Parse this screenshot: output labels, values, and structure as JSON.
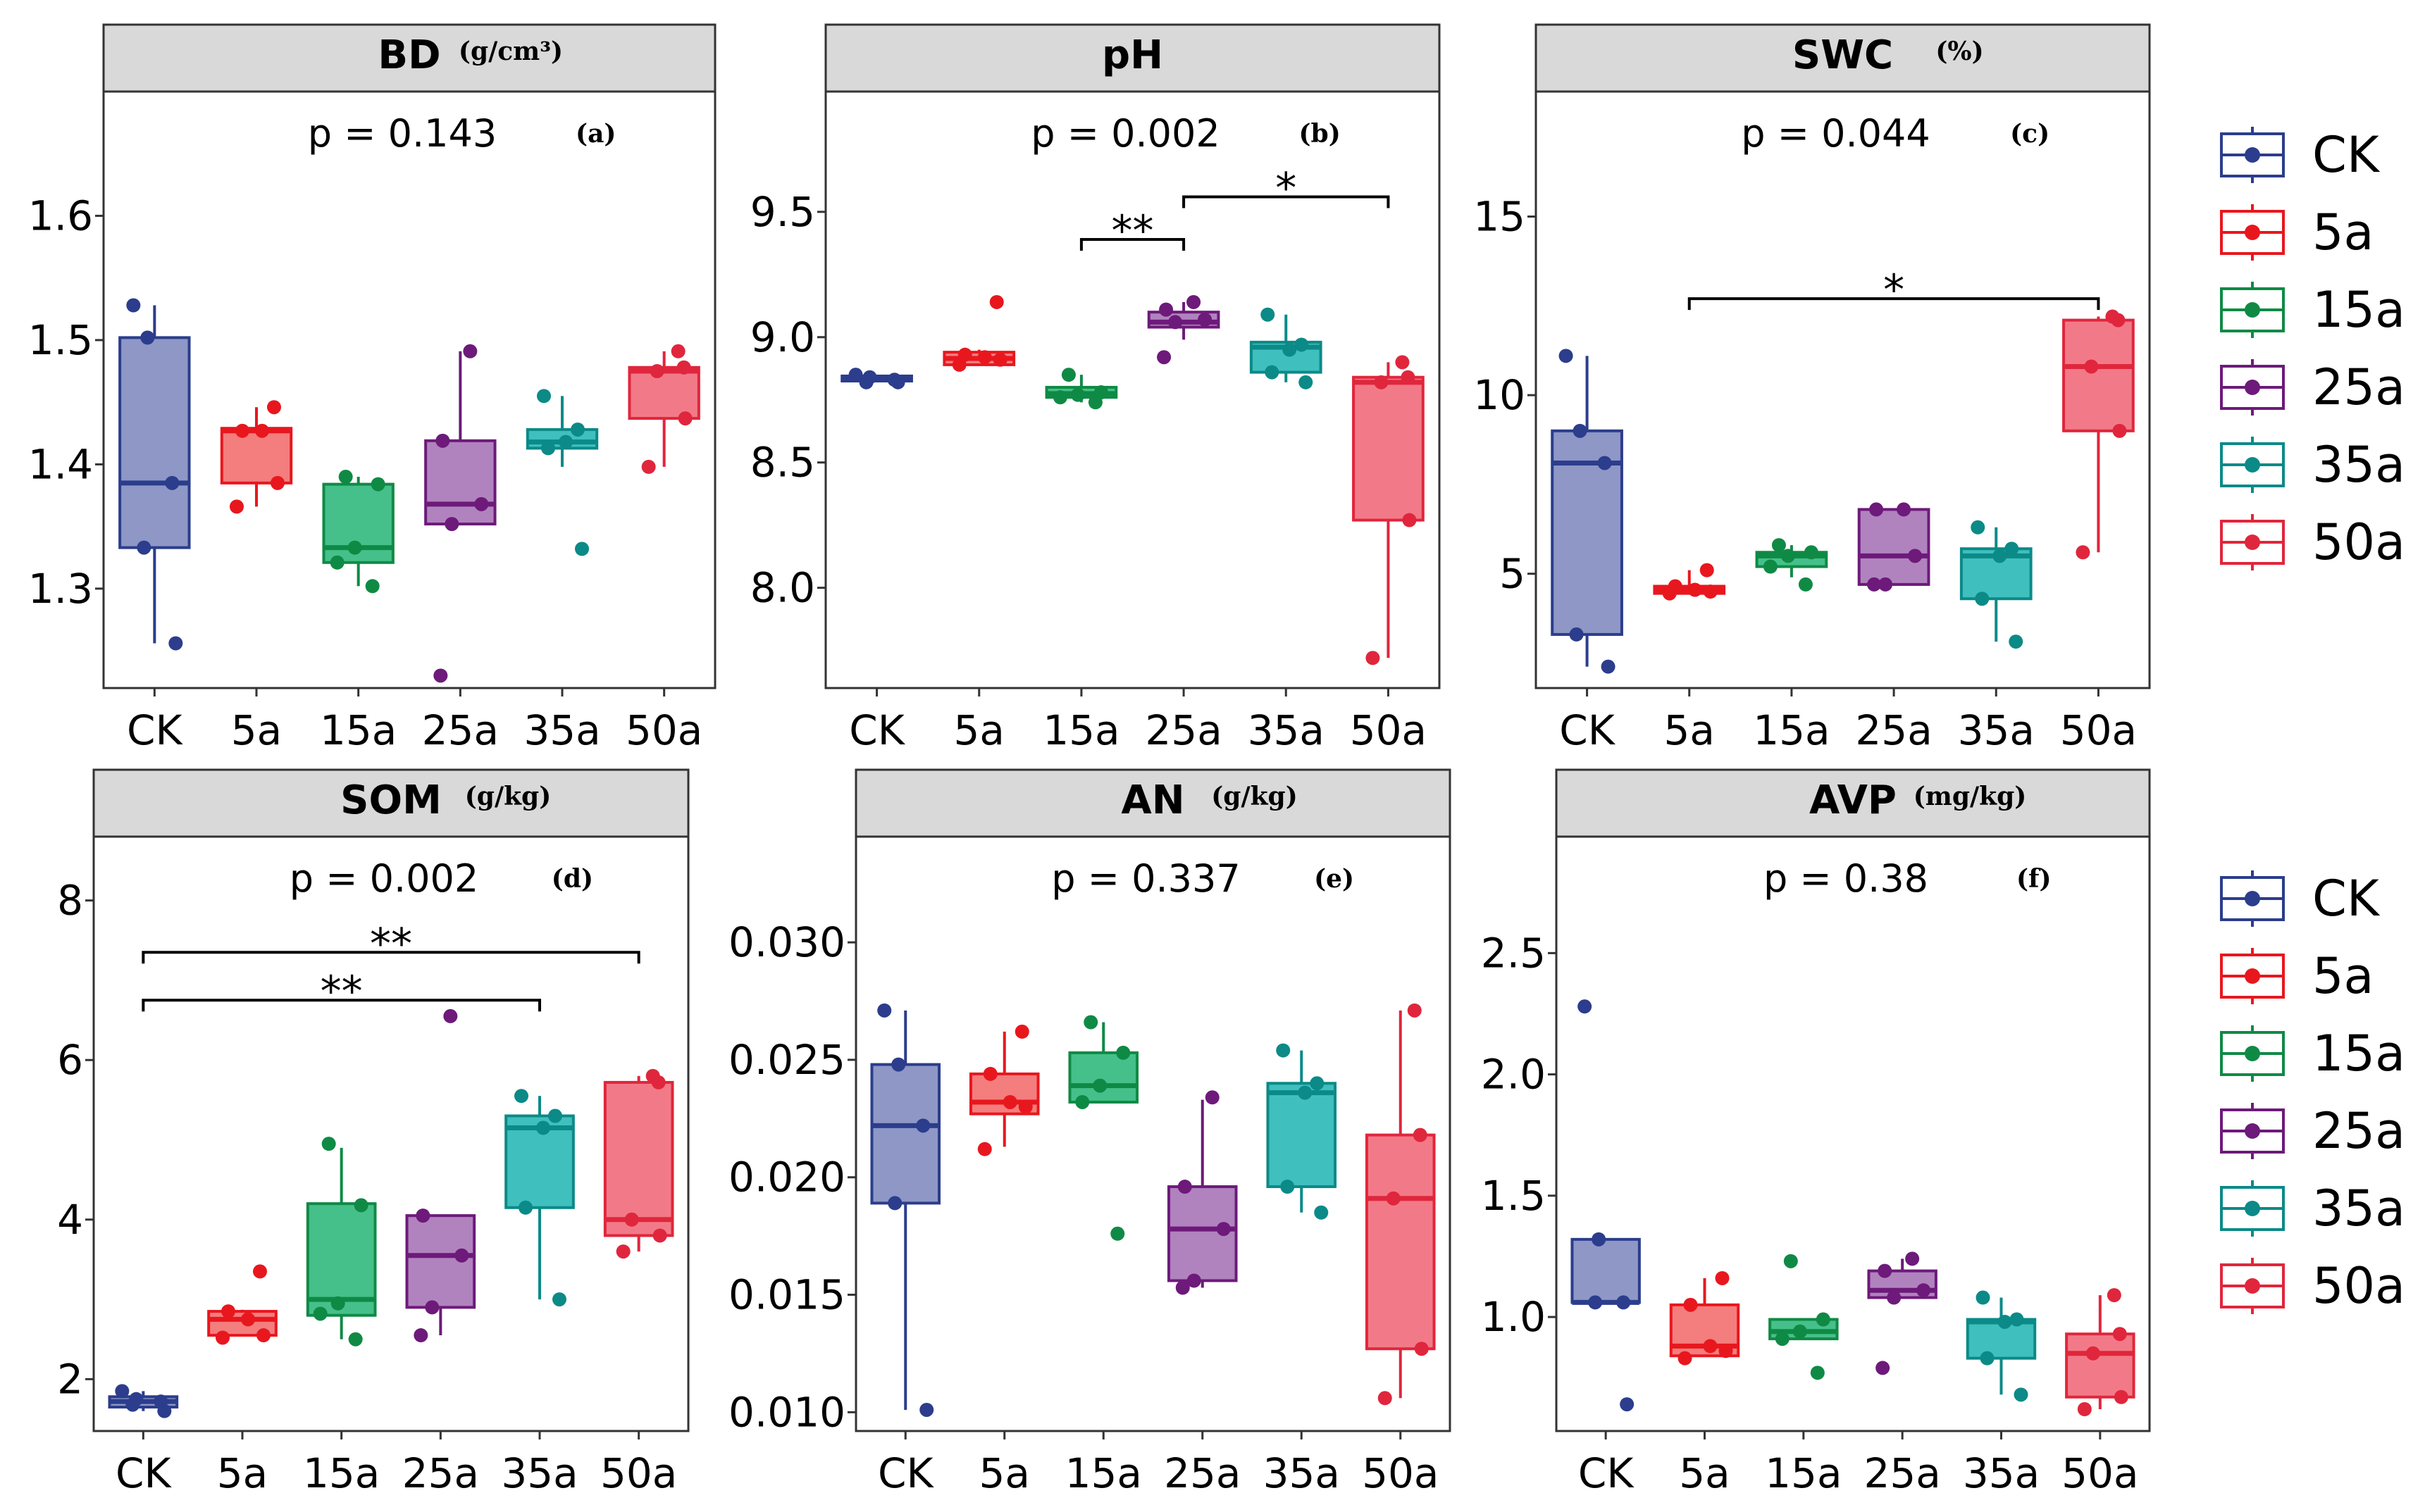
{
  "series_colors": {
    "CK": {
      "line": "#2b3d8c",
      "fill": "#8e97c6"
    },
    "5a": {
      "line": "#e8171e",
      "fill": "#f47d7d"
    },
    "15a": {
      "line": "#0f8a45",
      "fill": "#46c08a"
    },
    "25a": {
      "line": "#6d1a7a",
      "fill": "#b083be"
    },
    "35a": {
      "line": "#0b8a88",
      "fill": "#3fbfbd"
    },
    "50a": {
      "line": "#e0263c",
      "fill": "#f27a88"
    }
  },
  "legends": [
    {
      "entries": [
        "CK",
        "5a",
        "15a",
        "25a",
        "35a",
        "50a"
      ]
    },
    {
      "entries": [
        "CK",
        "5a",
        "15a",
        "25a",
        "35a",
        "50a"
      ]
    }
  ],
  "chart_data": [
    {
      "type": "boxplot",
      "title": "BD",
      "unit": "(g/cm³)",
      "p_value": "p = 0.143",
      "tag": "(a)",
      "categories": [
        "CK",
        "5a",
        "15a",
        "25a",
        "35a",
        "50a"
      ],
      "ylim": [
        1.22,
        1.7
      ],
      "yticks": [
        1.3,
        1.4,
        1.5,
        1.6
      ],
      "tick_labels": [
        "1.3",
        "1.4",
        "1.5",
        "1.6"
      ],
      "boxes": [
        {
          "q1": 1.333,
          "median": 1.385,
          "q3": 1.502,
          "lo": 1.256,
          "hi": 1.528
        },
        {
          "q1": 1.385,
          "median": 1.427,
          "q3": 1.429,
          "lo": 1.366,
          "hi": 1.446
        },
        {
          "q1": 1.321,
          "median": 1.333,
          "q3": 1.384,
          "lo": 1.302,
          "hi": 1.39
        },
        {
          "q1": 1.352,
          "median": 1.368,
          "q3": 1.419,
          "lo": 1.352,
          "hi": 1.491
        },
        {
          "q1": 1.413,
          "median": 1.418,
          "q3": 1.428,
          "lo": 1.398,
          "hi": 1.455
        },
        {
          "q1": 1.437,
          "median": 1.475,
          "q3": 1.478,
          "lo": 1.398,
          "hi": 1.491
        }
      ],
      "points": [
        [
          1.528,
          1.502,
          1.385,
          1.333,
          1.256
        ],
        [
          1.446,
          1.427,
          1.427,
          1.385,
          1.366
        ],
        [
          1.39,
          1.384,
          1.333,
          1.321,
          1.302
        ],
        [
          1.491,
          1.419,
          1.368,
          1.352,
          1.23
        ],
        [
          1.455,
          1.428,
          1.418,
          1.413,
          1.332
        ],
        [
          1.491,
          1.478,
          1.475,
          1.437,
          1.398
        ]
      ],
      "brackets": []
    },
    {
      "type": "boxplot",
      "title": "pH",
      "unit": "",
      "p_value": "p = 0.002",
      "tag": "(b)",
      "categories": [
        "CK",
        "5a",
        "15a",
        "25a",
        "35a",
        "50a"
      ],
      "ylim": [
        7.6,
        9.98
      ],
      "yticks": [
        8.0,
        8.5,
        9.0,
        9.5
      ],
      "tick_labels": [
        "8.0",
        "8.5",
        "9.0",
        "9.5"
      ],
      "boxes": [
        {
          "q1": 8.825,
          "median": 8.835,
          "q3": 8.845,
          "lo": 8.82,
          "hi": 8.85
        },
        {
          "q1": 8.89,
          "median": 8.915,
          "q3": 8.94,
          "lo": 8.89,
          "hi": 8.95
        },
        {
          "q1": 8.76,
          "median": 8.775,
          "q3": 8.8,
          "lo": 8.74,
          "hi": 8.85
        },
        {
          "q1": 9.04,
          "median": 9.06,
          "q3": 9.1,
          "lo": 8.99,
          "hi": 9.14
        },
        {
          "q1": 8.86,
          "median": 8.96,
          "q3": 8.98,
          "lo": 8.82,
          "hi": 9.09
        },
        {
          "q1": 8.27,
          "median": 8.82,
          "q3": 8.84,
          "lo": 7.72,
          "hi": 8.9
        }
      ],
      "points": [
        [
          8.85,
          8.84,
          8.83,
          8.82,
          8.82
        ],
        [
          9.14,
          8.93,
          8.92,
          8.91,
          8.89
        ],
        [
          8.85,
          8.78,
          8.77,
          8.76,
          8.74
        ],
        [
          9.14,
          9.11,
          9.07,
          9.06,
          8.92
        ],
        [
          9.09,
          8.97,
          8.95,
          8.86,
          8.82
        ],
        [
          8.9,
          8.84,
          8.82,
          8.27,
          7.72
        ]
      ],
      "brackets": [
        {
          "from": 2,
          "to": 3,
          "y": 9.39,
          "label": "**"
        },
        {
          "from": 3,
          "to": 5,
          "y": 9.56,
          "label": "*"
        }
      ]
    },
    {
      "type": "boxplot",
      "title": "SWC",
      "unit": "(%)",
      "p_value": "p = 0.044",
      "tag": "(c)",
      "categories": [
        "CK",
        "5a",
        "15a",
        "25a",
        "35a",
        "50a"
      ],
      "ylim": [
        1.8,
        18.5
      ],
      "yticks": [
        5,
        10,
        15
      ],
      "tick_labels": [
        "5",
        "10",
        "15"
      ],
      "boxes": [
        {
          "q1": 3.3,
          "median": 8.1,
          "q3": 9.0,
          "lo": 2.4,
          "hi": 11.1
        },
        {
          "q1": 4.45,
          "median": 4.55,
          "q3": 4.65,
          "lo": 4.45,
          "hi": 5.1
        },
        {
          "q1": 5.2,
          "median": 5.5,
          "q3": 5.6,
          "lo": 4.9,
          "hi": 5.8
        },
        {
          "q1": 4.7,
          "median": 5.5,
          "q3": 6.8,
          "lo": 4.7,
          "hi": 6.8
        },
        {
          "q1": 4.3,
          "median": 5.5,
          "q3": 5.7,
          "lo": 3.1,
          "hi": 6.3
        },
        {
          "q1": 9.0,
          "median": 10.8,
          "q3": 12.1,
          "lo": 5.6,
          "hi": 12.2
        }
      ],
      "points": [
        [
          11.1,
          9.0,
          8.1,
          3.3,
          2.4
        ],
        [
          5.1,
          4.65,
          4.55,
          4.5,
          4.45
        ],
        [
          5.8,
          5.6,
          5.5,
          5.2,
          4.7
        ],
        [
          6.8,
          6.8,
          5.5,
          4.7,
          4.7
        ],
        [
          6.3,
          5.7,
          5.5,
          4.3,
          3.1
        ],
        [
          12.2,
          12.1,
          10.8,
          9.0,
          5.6
        ]
      ],
      "brackets": [
        {
          "from": 1,
          "to": 5,
          "y": 12.7,
          "label": "*"
        }
      ]
    },
    {
      "type": "boxplot",
      "title": "SOM",
      "unit": "(g/kg)",
      "p_value": "p = 0.002",
      "tag": "(d)",
      "categories": [
        "CK",
        "5a",
        "15a",
        "25a",
        "35a",
        "50a"
      ],
      "ylim": [
        1.35,
        8.8
      ],
      "yticks": [
        2,
        4,
        6,
        8
      ],
      "tick_labels": [
        "2",
        "4",
        "6",
        "8"
      ],
      "boxes": [
        {
          "q1": 1.65,
          "median": 1.72,
          "q3": 1.78,
          "lo": 1.6,
          "hi": 1.85
        },
        {
          "q1": 2.55,
          "median": 2.75,
          "q3": 2.85,
          "lo": 2.55,
          "hi": 2.87
        },
        {
          "q1": 2.8,
          "median": 3.0,
          "q3": 4.2,
          "lo": 2.5,
          "hi": 4.9
        },
        {
          "q1": 2.9,
          "median": 3.55,
          "q3": 4.05,
          "lo": 2.55,
          "hi": 4.05
        },
        {
          "q1": 4.15,
          "median": 5.15,
          "q3": 5.3,
          "lo": 3.0,
          "hi": 5.55
        },
        {
          "q1": 3.8,
          "median": 4.0,
          "q3": 5.72,
          "lo": 3.6,
          "hi": 5.8
        }
      ],
      "points": [
        [
          1.85,
          1.75,
          1.72,
          1.68,
          1.6
        ],
        [
          3.35,
          2.85,
          2.75,
          2.55,
          2.52
        ],
        [
          4.95,
          4.18,
          2.95,
          2.82,
          2.5
        ],
        [
          6.55,
          4.05,
          3.55,
          2.9,
          2.55
        ],
        [
          5.55,
          5.3,
          5.15,
          4.15,
          3.0
        ],
        [
          5.8,
          5.72,
          4.0,
          3.8,
          3.6
        ]
      ],
      "brackets": [
        {
          "from": 0,
          "to": 5,
          "y": 7.35,
          "label": "**"
        },
        {
          "from": 0,
          "to": 4,
          "y": 6.75,
          "label": "**"
        }
      ]
    },
    {
      "type": "boxplot",
      "title": "AN",
      "unit": "(g/kg)",
      "p_value": "p = 0.337",
      "tag": "(e)",
      "categories": [
        "CK",
        "5a",
        "15a",
        "25a",
        "35a",
        "50a"
      ],
      "ylim": [
        0.0092,
        0.0345
      ],
      "yticks": [
        0.01,
        0.015,
        0.02,
        0.025,
        0.03
      ],
      "tick_labels": [
        "0.010",
        "0.015",
        "0.020",
        "0.025",
        "0.030"
      ],
      "boxes": [
        {
          "q1": 0.0189,
          "median": 0.0222,
          "q3": 0.0248,
          "lo": 0.0101,
          "hi": 0.0271
        },
        {
          "q1": 0.0227,
          "median": 0.0232,
          "q3": 0.0244,
          "lo": 0.0213,
          "hi": 0.0262
        },
        {
          "q1": 0.0232,
          "median": 0.0239,
          "q3": 0.0253,
          "lo": 0.0232,
          "hi": 0.0266
        },
        {
          "q1": 0.0156,
          "median": 0.0178,
          "q3": 0.0196,
          "lo": 0.0153,
          "hi": 0.0233
        },
        {
          "q1": 0.0196,
          "median": 0.0236,
          "q3": 0.024,
          "lo": 0.0185,
          "hi": 0.0254
        },
        {
          "q1": 0.0127,
          "median": 0.0191,
          "q3": 0.0218,
          "lo": 0.0106,
          "hi": 0.0271
        }
      ],
      "points": [
        [
          0.0271,
          0.0248,
          0.0222,
          0.0189,
          0.0101
        ],
        [
          0.0262,
          0.0244,
          0.0232,
          0.023,
          0.0212
        ],
        [
          0.0266,
          0.0253,
          0.0239,
          0.0232,
          0.0176
        ],
        [
          0.0234,
          0.0196,
          0.0178,
          0.0156,
          0.0153
        ],
        [
          0.0254,
          0.024,
          0.0236,
          0.0196,
          0.0185
        ],
        [
          0.0271,
          0.0218,
          0.0191,
          0.0127,
          0.0106
        ]
      ],
      "brackets": []
    },
    {
      "type": "boxplot",
      "title": "AVP",
      "unit": "(mg/kg)",
      "p_value": "p = 0.38",
      "tag": "(f)",
      "categories": [
        "CK",
        "5a",
        "15a",
        "25a",
        "35a",
        "50a"
      ],
      "ylim": [
        0.53,
        2.98
      ],
      "yticks": [
        1.0,
        1.5,
        2.0,
        2.5
      ],
      "tick_labels": [
        "1.0",
        "1.5",
        "2.0",
        "2.5"
      ],
      "boxes": [
        {
          "q1": 1.06,
          "median": 1.06,
          "q3": 1.32,
          "lo": 1.06,
          "hi": 1.32
        },
        {
          "q1": 0.84,
          "median": 0.88,
          "q3": 1.05,
          "lo": 0.84,
          "hi": 1.16
        },
        {
          "q1": 0.91,
          "median": 0.94,
          "q3": 0.99,
          "lo": 0.91,
          "hi": 0.99
        },
        {
          "q1": 1.08,
          "median": 1.11,
          "q3": 1.19,
          "lo": 1.08,
          "hi": 1.24
        },
        {
          "q1": 0.83,
          "median": 0.98,
          "q3": 0.99,
          "lo": 0.68,
          "hi": 1.08
        },
        {
          "q1": 0.67,
          "median": 0.85,
          "q3": 0.93,
          "lo": 0.62,
          "hi": 1.09
        }
      ],
      "points": [
        [
          2.28,
          1.32,
          1.06,
          1.06,
          0.64
        ],
        [
          1.16,
          1.05,
          0.88,
          0.86,
          0.83
        ],
        [
          1.23,
          0.99,
          0.94,
          0.91,
          0.77
        ],
        [
          1.24,
          1.19,
          1.11,
          1.08,
          0.79
        ],
        [
          1.08,
          0.99,
          0.98,
          0.83,
          0.68
        ],
        [
          1.09,
          0.93,
          0.85,
          0.67,
          0.62
        ]
      ],
      "brackets": []
    }
  ]
}
